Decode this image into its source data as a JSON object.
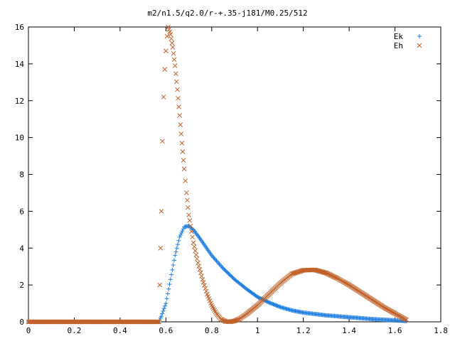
{
  "chart_data": {
    "type": "scatter",
    "title": "m2/n1.5/q2.0/r-+.35-j181/M0.25/512",
    "xlabel": "",
    "ylabel": "",
    "xlim": [
      0,
      1.8
    ],
    "ylim": [
      0,
      16
    ],
    "x_ticks": [
      "0",
      "0.2",
      "0.4",
      "0.6",
      "0.8",
      "1",
      "1.2",
      "1.4",
      "1.6",
      "1.8"
    ],
    "y_ticks": [
      "0",
      "2",
      "4",
      "6",
      "8",
      "10",
      "12",
      "14",
      "16"
    ],
    "grid": false,
    "legend_position": "top-right",
    "series": [
      {
        "name": "Ek",
        "marker": "plus",
        "color": "#1f7fe0",
        "points": [
          [
            0.0,
            0
          ],
          [
            0.1,
            0
          ],
          [
            0.2,
            0
          ],
          [
            0.3,
            0
          ],
          [
            0.4,
            0
          ],
          [
            0.5,
            0
          ],
          [
            0.57,
            0
          ],
          [
            0.58,
            0.3
          ],
          [
            0.6,
            1.0
          ],
          [
            0.62,
            2.3
          ],
          [
            0.64,
            3.6
          ],
          [
            0.66,
            4.6
          ],
          [
            0.68,
            5.15
          ],
          [
            0.7,
            5.2
          ],
          [
            0.72,
            5.0
          ],
          [
            0.75,
            4.5
          ],
          [
            0.8,
            3.6
          ],
          [
            0.85,
            2.9
          ],
          [
            0.9,
            2.3
          ],
          [
            0.95,
            1.8
          ],
          [
            1.0,
            1.35
          ],
          [
            1.05,
            1.05
          ],
          [
            1.1,
            0.8
          ],
          [
            1.15,
            0.62
          ],
          [
            1.2,
            0.5
          ],
          [
            1.3,
            0.35
          ],
          [
            1.4,
            0.25
          ],
          [
            1.5,
            0.15
          ],
          [
            1.6,
            0.08
          ],
          [
            1.65,
            0.04
          ]
        ]
      },
      {
        "name": "Eh",
        "marker": "cross",
        "color": "#c0622b",
        "points": [
          [
            0.0,
            0
          ],
          [
            0.1,
            0
          ],
          [
            0.2,
            0
          ],
          [
            0.3,
            0
          ],
          [
            0.4,
            0
          ],
          [
            0.5,
            0
          ],
          [
            0.57,
            0
          ],
          [
            0.58,
            6.0
          ],
          [
            0.585,
            9.8
          ],
          [
            0.59,
            12.2
          ],
          [
            0.595,
            13.7
          ],
          [
            0.6,
            14.7
          ],
          [
            0.605,
            15.5
          ],
          [
            0.61,
            16.0
          ],
          [
            0.62,
            15.6
          ],
          [
            0.63,
            14.9
          ],
          [
            0.64,
            13.9
          ],
          [
            0.65,
            12.6
          ],
          [
            0.66,
            11.2
          ],
          [
            0.67,
            9.7
          ],
          [
            0.68,
            8.3
          ],
          [
            0.69,
            7.0
          ],
          [
            0.7,
            5.8
          ],
          [
            0.72,
            4.3
          ],
          [
            0.74,
            3.2
          ],
          [
            0.76,
            2.3
          ],
          [
            0.78,
            1.5
          ],
          [
            0.8,
            0.9
          ],
          [
            0.82,
            0.45
          ],
          [
            0.84,
            0.15
          ],
          [
            0.86,
            0.02
          ],
          [
            0.88,
            0.0
          ],
          [
            0.9,
            0.05
          ],
          [
            0.92,
            0.15
          ],
          [
            0.95,
            0.4
          ],
          [
            1.0,
            0.9
          ],
          [
            1.05,
            1.5
          ],
          [
            1.1,
            2.1
          ],
          [
            1.15,
            2.6
          ],
          [
            1.2,
            2.8
          ],
          [
            1.25,
            2.82
          ],
          [
            1.3,
            2.65
          ],
          [
            1.35,
            2.35
          ],
          [
            1.4,
            2.0
          ],
          [
            1.45,
            1.6
          ],
          [
            1.5,
            1.2
          ],
          [
            1.55,
            0.8
          ],
          [
            1.6,
            0.45
          ],
          [
            1.65,
            0.1
          ]
        ]
      }
    ]
  }
}
